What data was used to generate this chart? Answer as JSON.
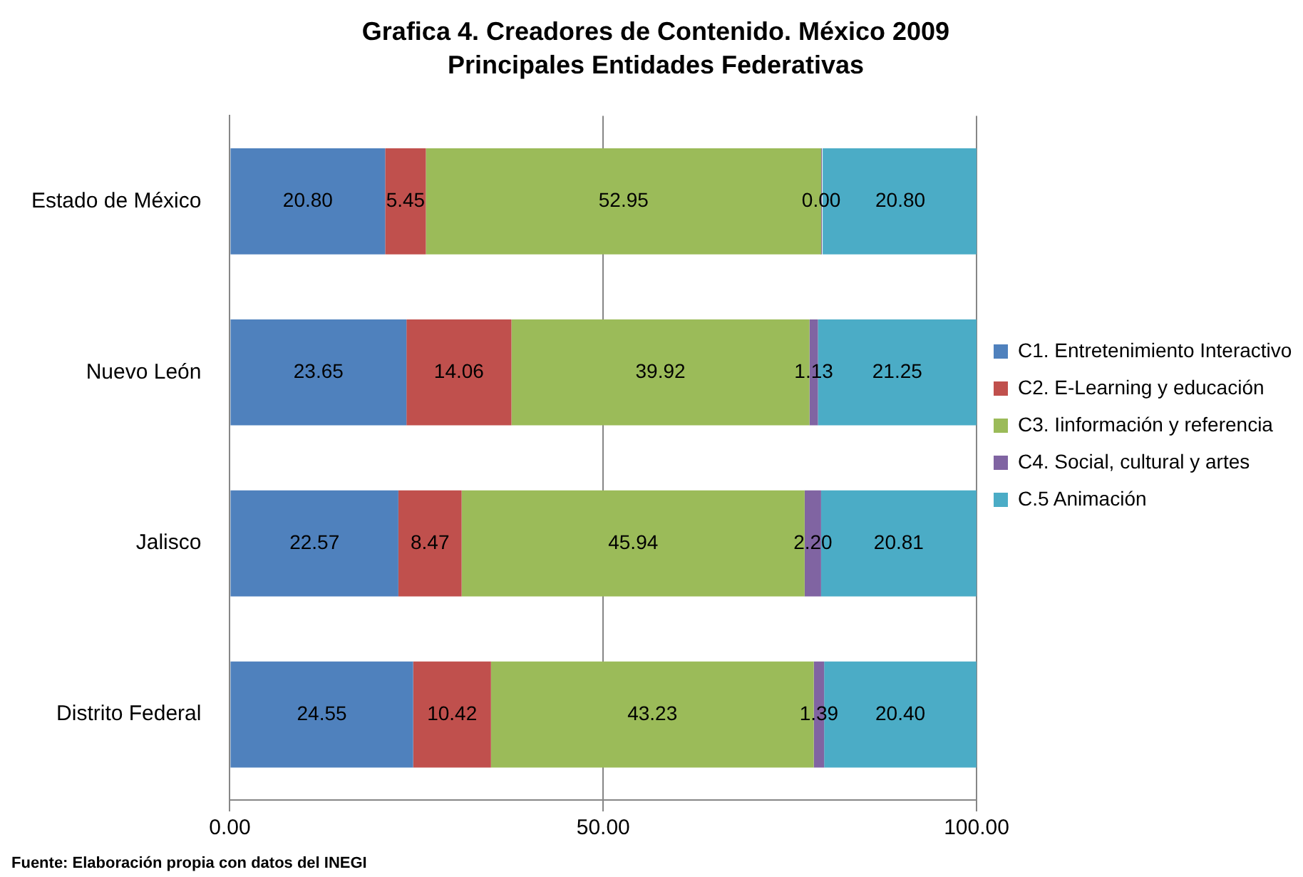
{
  "chart_data": {
    "type": "bar",
    "orientation": "horizontal",
    "stacked": true,
    "title": "Grafica 4. Creadores de Contenido. México 2009",
    "subtitle": "Principales Entidades Federativas",
    "categories": [
      "Estado de México",
      "Nuevo León",
      "Jalisco",
      "Distrito Federal"
    ],
    "series": [
      {
        "name": "C1. Entretenimiento Interactivo",
        "color": "#4f81bd",
        "values": [
          20.8,
          23.65,
          22.57,
          24.55
        ],
        "value_labels": [
          "20.80",
          "23.65",
          "22.57",
          "24.55"
        ]
      },
      {
        "name": "C2. E-Learning y educación",
        "color": "#c0504d",
        "values": [
          5.45,
          14.06,
          8.47,
          10.42
        ],
        "value_labels": [
          "5.45",
          "14.06",
          "8.47",
          "10.42"
        ]
      },
      {
        "name": "C3. Iinformación y referencia",
        "color": "#9bbb59",
        "values": [
          52.95,
          39.92,
          45.94,
          43.23
        ],
        "value_labels": [
          "52.95",
          "39.92",
          "45.94",
          "43.23"
        ]
      },
      {
        "name": "C4. Social, cultural y artes",
        "color": "#8064a2",
        "values": [
          0,
          1.13,
          2.2,
          1.39
        ],
        "value_labels": [
          "0.00",
          "1.13",
          "2.20",
          "1.39"
        ]
      },
      {
        "name": "C.5 Animación",
        "color": "#4bacc6",
        "values": [
          20.8,
          21.25,
          20.81,
          20.4
        ],
        "value_labels": [
          "20.80",
          "21.25",
          "20.81",
          "20.40"
        ]
      }
    ],
    "xlim": [
      0,
      100
    ],
    "xticks": [
      {
        "value": 0,
        "label": "0.00"
      },
      {
        "value": 50,
        "label": "50.00"
      },
      {
        "value": 100,
        "label": "100.00"
      }
    ],
    "grid": "x",
    "legend": "right",
    "annotations": [
      "Fuente: Elaboración propia con datos del INEGI"
    ]
  }
}
